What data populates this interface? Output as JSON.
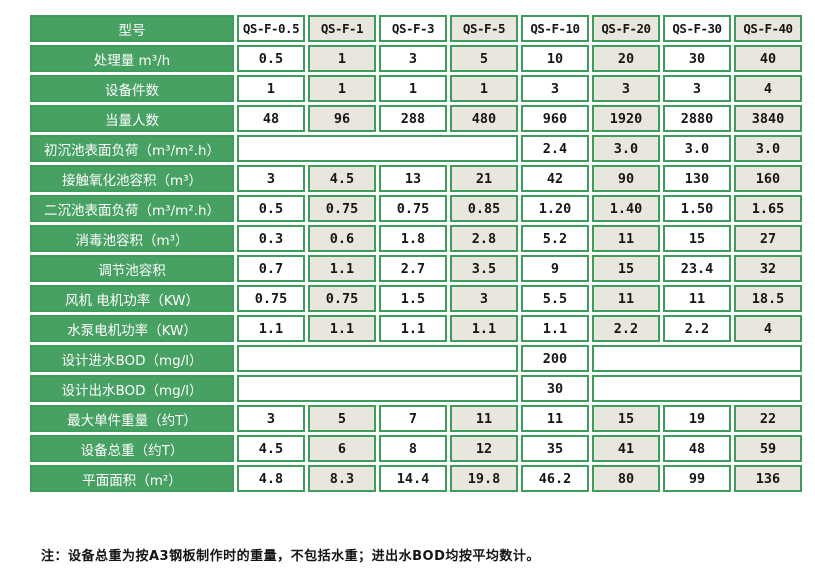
{
  "colors": {
    "header_green": "#47a163",
    "border_green": "#3e9c5c",
    "alt_cell": "#e9e6dd",
    "data_text": "#161616"
  },
  "table": {
    "corner_label": "型号",
    "columns": [
      "QS-F-0.5",
      "QS-F-1",
      "QS-F-3",
      "QS-F-5",
      "QS-F-10",
      "QS-F-20",
      "QS-F-30",
      "QS-F-40"
    ],
    "rows": [
      {
        "label": "处理量 m³/h",
        "cells": [
          "0.5",
          "1",
          "3",
          "5",
          "10",
          "20",
          "30",
          "40"
        ]
      },
      {
        "label": "设备件数",
        "cells": [
          "1",
          "1",
          "1",
          "1",
          "3",
          "3",
          "3",
          "4"
        ]
      },
      {
        "label": "当量人数",
        "cells": [
          "48",
          "96",
          "288",
          "480",
          "960",
          "1920",
          "2880",
          "3840"
        ]
      },
      {
        "label": "初沉池表面负荷（m³/m².h）",
        "cells": [
          {
            "v": "",
            "span": 4
          },
          "2.4",
          "3.0",
          "3.0",
          "3.0"
        ]
      },
      {
        "label": "接触氧化池容积（m³）",
        "cells": [
          "3",
          "4.5",
          "13",
          "21",
          "42",
          "90",
          "130",
          "160"
        ]
      },
      {
        "label": "二沉池表面负荷（m³/m².h）",
        "cells": [
          "0.5",
          "0.75",
          "0.75",
          "0.85",
          "1.20",
          "1.40",
          "1.50",
          "1.65"
        ]
      },
      {
        "label": "消毒池容积（m³）",
        "cells": [
          "0.3",
          "0.6",
          "1.8",
          "2.8",
          "5.2",
          "11",
          "15",
          "27"
        ]
      },
      {
        "label": "调节池容积",
        "cells": [
          "0.7",
          "1.1",
          "2.7",
          "3.5",
          "9",
          "15",
          "23.4",
          "32"
        ]
      },
      {
        "label": "风机 电机功率（KW）",
        "cells": [
          "0.75",
          "0.75",
          "1.5",
          "3",
          "5.5",
          "11",
          "11",
          "18.5"
        ]
      },
      {
        "label": "水泵电机功率（KW）",
        "cells": [
          "1.1",
          "1.1",
          "1.1",
          "1.1",
          "1.1",
          "2.2",
          "2.2",
          "4"
        ]
      },
      {
        "label": "设计进水BOD（mg/l）",
        "cells": [
          {
            "v": "",
            "span": 4
          },
          "200",
          {
            "v": "",
            "span": 3
          }
        ]
      },
      {
        "label": "设计出水BOD（mg/l）",
        "cells": [
          {
            "v": "",
            "span": 4
          },
          "30",
          {
            "v": "",
            "span": 3
          }
        ]
      },
      {
        "label": "最大单件重量（约T）",
        "cells": [
          "3",
          "5",
          "7",
          "11",
          "11",
          "15",
          "19",
          "22"
        ]
      },
      {
        "label": "设备总重（约T）",
        "cells": [
          "4.5",
          "6",
          "8",
          "12",
          "35",
          "41",
          "48",
          "59"
        ]
      },
      {
        "label": "平面面积（m²）",
        "cells": [
          "4.8",
          "8.3",
          "14.4",
          "19.8",
          "46.2",
          "80",
          "99",
          "136"
        ]
      }
    ]
  },
  "note": "注：设备总重为按A3钢板制作时的重量，不包括水重；进出水BOD均按平均数计。"
}
